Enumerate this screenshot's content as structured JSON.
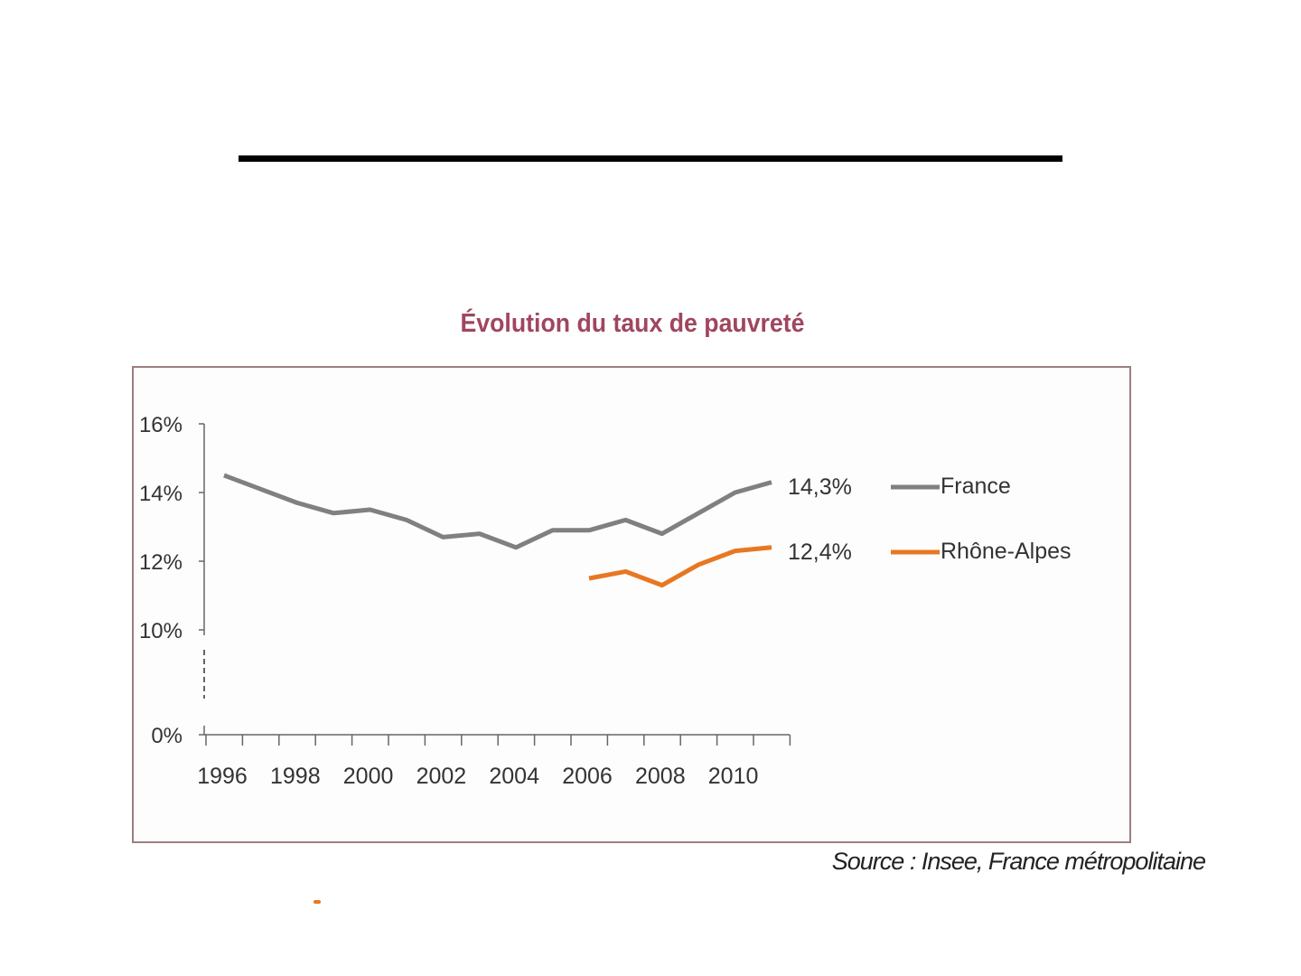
{
  "slide": {
    "source": "Source : Insee, France métropolitaine"
  },
  "chart_data": {
    "type": "line",
    "title": "Évolution du taux de pauvreté",
    "xlabel": "",
    "ylabel": "",
    "x": [
      1996,
      1997,
      1998,
      1999,
      2000,
      2001,
      2002,
      2003,
      2004,
      2005,
      2006,
      2007,
      2008,
      2009,
      2010,
      2011
    ],
    "ylim": [
      0,
      16
    ],
    "y_axis_break": true,
    "y_ticks": [
      {
        "value": 0,
        "label": "0%"
      },
      {
        "value": 10,
        "label": "10%"
      },
      {
        "value": 12,
        "label": "12%"
      },
      {
        "value": 14,
        "label": "14%"
      },
      {
        "value": 16,
        "label": "16%"
      }
    ],
    "x_tick_labels": [
      "1996",
      "1998",
      "2000",
      "2002",
      "2004",
      "2006",
      "2008",
      "2010"
    ],
    "series": [
      {
        "name": "France",
        "color": "#808080",
        "values": [
          14.5,
          14.1,
          13.7,
          13.4,
          13.5,
          13.2,
          12.7,
          12.8,
          12.4,
          12.9,
          12.9,
          13.2,
          12.8,
          13.4,
          14.0,
          14.3
        ],
        "end_label": "14,3%"
      },
      {
        "name": "Rhône-Alpes",
        "color": "#e87722",
        "values": [
          null,
          null,
          null,
          null,
          null,
          null,
          null,
          null,
          null,
          null,
          11.5,
          11.7,
          11.3,
          11.9,
          12.3,
          12.4
        ],
        "end_label": "12,4%"
      }
    ],
    "legend": "right",
    "grid": false
  }
}
